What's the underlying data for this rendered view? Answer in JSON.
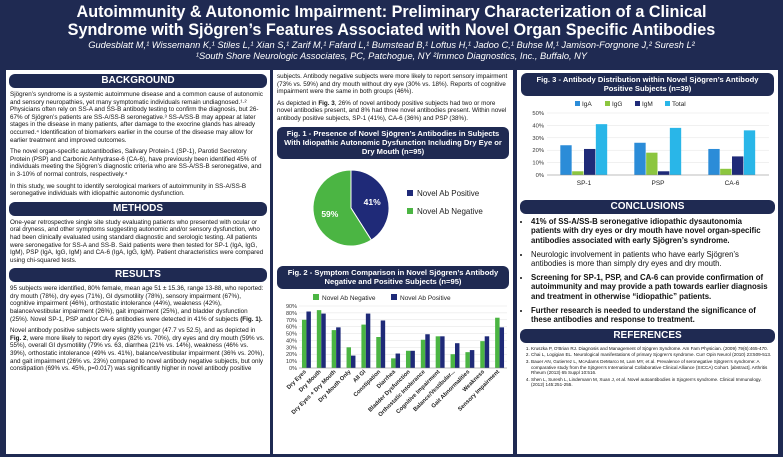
{
  "header": {
    "title_line1": "Autoimmunity & Autonomic Impairment: Preliminary Characterization of a Clinical",
    "title_line2": "Syndrome with Sjögren’s Features Associated with Novel Organ Specific Antibodies",
    "authors": "Gudesblatt M,¹ Wissemann K,¹ Stiles L,¹ Xian S,¹ Zarif M,¹ Fafard L,¹ Bumstead B,¹ Loftus H,¹ Jadoo C,¹ Buhse M,¹ Jamison-Forgnone J,² Suresh L²",
    "affiliations": "¹South Shore Neurologic Associates, PC, Patchogue, NY   ²Immco Diagnostics, Inc., Buffalo, NY"
  },
  "background": {
    "heading": "BACKGROUND",
    "p1": "Sjögren’s syndrome is a systemic autoimmune disease and a common cause of autonomic and sensory neuropathies, yet many symptomatic individuals remain undiagnosed.¹·² Physicians often rely on SS-A and SS-B antibody testing to confirm the diagnosis, but 26-67% of Sjögren’s patients are SS-A/SS-B seronegative.³ SS-A/SS-B may appear at later stages in the disease in many patients, after damage to the exocrine glands has already occurred.⁴ Identification of biomarkers earlier in the course of the disease may allow for earlier treatment and improved outcomes.",
    "p2": "The novel organ-specific autoantibodies, Salivary Protein-1 (SP-1), Parotid Secretory Protein (PSP) and Carbonic Anhydrase-6 (CA-6), have previously been identified 45% of individuals meeting the Sjögren’s diagnostic criteria who are SS-A/SS-B seronegative, and in 3-10% of normal controls, respectively.⁴",
    "p3": "In this study, we sought to identify serological markers of autoimmunity in SS-A/SS-B seronegative individuals with idiopathic autonomic dysfunction."
  },
  "methods": {
    "heading": "METHODS",
    "p1": "One-year retrospective single site study evaluating patients who presented with ocular or oral dryness, and other symptoms suggesting autonomic and/or sensory dysfunction, who had been clinically evaluated using standard diagnostic and serologic testing. All patients were seronegative for SS-A and SS-B. Said patients were then tested for SP-1 (IgA, IgG, IgM), PSP (IgA, IgG, IgM) and CA-6 (IgA, IgG, IgM). Patient characteristics were compared using chi-squared tests."
  },
  "results": {
    "heading": "RESULTS",
    "p1_a": "95 subjects were identified, 80% female, mean age 51 ± 15.36, range 13-88, who reported: dry mouth (78%), dry eyes (71%), GI dysmotility (78%), sensory impairment (67%), cognitive impairment (46%), orthostatic intolerance (44%), weakness (42%), balance/vestibular impairment (26%), gait impairment (25%), and bladder dysfunction (25%). Novel SP-1, PSP and/or CA-6 antibodies were detected in 41% of subjects ",
    "p1_b": "(Fig. 1).",
    "p2_a": "Novel antibody positive subjects were slightly younger (47.7 vs 52.5), and as depicted in ",
    "p2_b": "Fig. 2",
    "p2_c": ", were more likely to report dry eyes (82% vs. 70%), dry eyes and dry mouth (59% vs. 55%), overall GI dysmotility (79% vs. 63, diarrhea (21% vs. 14%), weakness (46% vs. 39%), orthostatic intolerance (49% vs. 41%), balance/vestibular impairment (36% vs. 20%), and gait impairment (26% vs. 23%) compared to novel antibody negative subjects, but only constipation (69% vs. 45%, p=0.017) was significantly higher in novel antibody positive"
  },
  "col2_text": {
    "p1": "subjects. Antibody negative subjects were more likely to report sensory impairment (73% vs. 59%) and dry mouth without dry eye (30% vs. 18%). Reports of cognitive impairment were the same in both groups (46%).",
    "p2_a": "As depicted in ",
    "p2_b": "Fig. 3",
    "p2_c": ", 26% of novel antibody positive subjects had two or more novel antibodies present, and 8% had three novel antibodies present. Within novel antibody positive subjects, SP-1 (41%), CA-6 (36%) and PSP (38%)."
  },
  "fig1": {
    "title": "Fig. 1 - Presence of Novel Sjögren’s Antibodies in Subjects With Idiopathic Autonomic Dysfunction Including Dry Eye or Dry Mouth (n=95)",
    "chart_data": {
      "type": "pie",
      "categories": [
        "Novel Ab Positive",
        "Novel Ab Negative"
      ],
      "values": [
        41,
        59
      ],
      "labels": [
        "41%",
        "59%"
      ],
      "colors": [
        "#1f2a78",
        "#4bb543"
      ],
      "legend": "right"
    }
  },
  "fig2": {
    "title": "Fig. 2 - Symptom Comparison in Novel Sjögren’s Antibody Negative and Positive Subjects (n=95)",
    "chart_data": {
      "type": "bar",
      "categories": [
        "Dry Eyes",
        "Dry Mouth",
        "Dry Eyes + Dry Mouth",
        "Dry Mouth Only",
        "All GI",
        "Constipation",
        "Diarrhea",
        "Bladder Dysfunction",
        "Orthostatic Intolerance",
        "Cognitive Impairment",
        "Balance/Vestibular...",
        "Gait Abnormalities",
        "Weakness",
        "Sensory Impairment"
      ],
      "series": [
        {
          "name": "Novel Ab Negative",
          "color": "#4bb543",
          "values": [
            70,
            84,
            55,
            30,
            63,
            45,
            14,
            25,
            41,
            46,
            20,
            23,
            39,
            73
          ]
        },
        {
          "name": "Novel Ab Positive",
          "color": "#1f2a78",
          "values": [
            82,
            79,
            59,
            18,
            79,
            69,
            21,
            25,
            49,
            46,
            36,
            26,
            46,
            59
          ]
        }
      ],
      "yticks": [
        "0%",
        "10%",
        "20%",
        "30%",
        "40%",
        "50%",
        "60%",
        "70%",
        "80%",
        "90%"
      ],
      "ylim": [
        0,
        90
      ],
      "legend": "top"
    }
  },
  "fig3": {
    "title": "Fig. 3 - Antibody Distribution within Novel Sjögren’s Antibody Positive Subjects (n=39)",
    "chart_data": {
      "type": "bar",
      "categories": [
        "SP-1",
        "PSP",
        "CA-6"
      ],
      "series": [
        {
          "name": "IgA",
          "color": "#2b8cd8",
          "values": [
            24,
            26,
            21
          ]
        },
        {
          "name": "IgG",
          "color": "#8cc63f",
          "values": [
            3,
            18,
            5
          ]
        },
        {
          "name": "IgM",
          "color": "#1f2a78",
          "values": [
            21,
            3,
            15
          ]
        },
        {
          "name": "Total",
          "color": "#29b6e8",
          "values": [
            41,
            38,
            36
          ]
        }
      ],
      "yticks": [
        "0%",
        "10%",
        "20%",
        "30%",
        "40%",
        "50%"
      ],
      "ylim": [
        0,
        50
      ],
      "legend": "top"
    }
  },
  "conclusions": {
    "heading": "CONCLUSIONS",
    "items": [
      "41% of SS-A/SS-B seronegative idiopathic dysautonomia patients with dry eyes or dry mouth have novel organ-specific antibodies associated with early Sjögren’s syndrome.",
      "Neurologic involvement in patients who have early Sjögren’s antibodies is more than simply dry eyes and dry mouth.",
      "Screening for SP-1, PSP, and CA-6 can provide confirmation of autoimmunity and may provide a path towards earlier diagnosis and treatment in otherwise “idiopathic” patients.",
      "Further research is needed to understand the significance of these antibodies and response to treatment."
    ]
  },
  "references": {
    "heading": "REFERENCES",
    "items": [
      "Kruszka P, O'Brian RJ. Diagnosis and Management of Sjögren Syndrome. Am Fam Physician. (2009) 79(6):465-470.",
      "Chai L, Logigian EL. Neurological manifestations of primary Sjogren’s syndrome. Curr Opin Neurol (2010) 23:509-513.",
      "Bauer AN, Gutierrez L, McAdams DeMarco M, Lam MY, et al. Prevalence of seronegative Sjögren’s syndrome: A comparative study from the Sjögren’s International Collaborative Clinical Alliance (SICCA) Cohort. [abstract]. Arthritis Rheum (2013) 65 Suppl 10:516.",
      "Shen L, Suresh L, Lindemann M, Xuan J, et al. Novel autoantibodies in Sjogren’s syndrome. Clinical Immunology. (2012) 145:251-255."
    ]
  }
}
